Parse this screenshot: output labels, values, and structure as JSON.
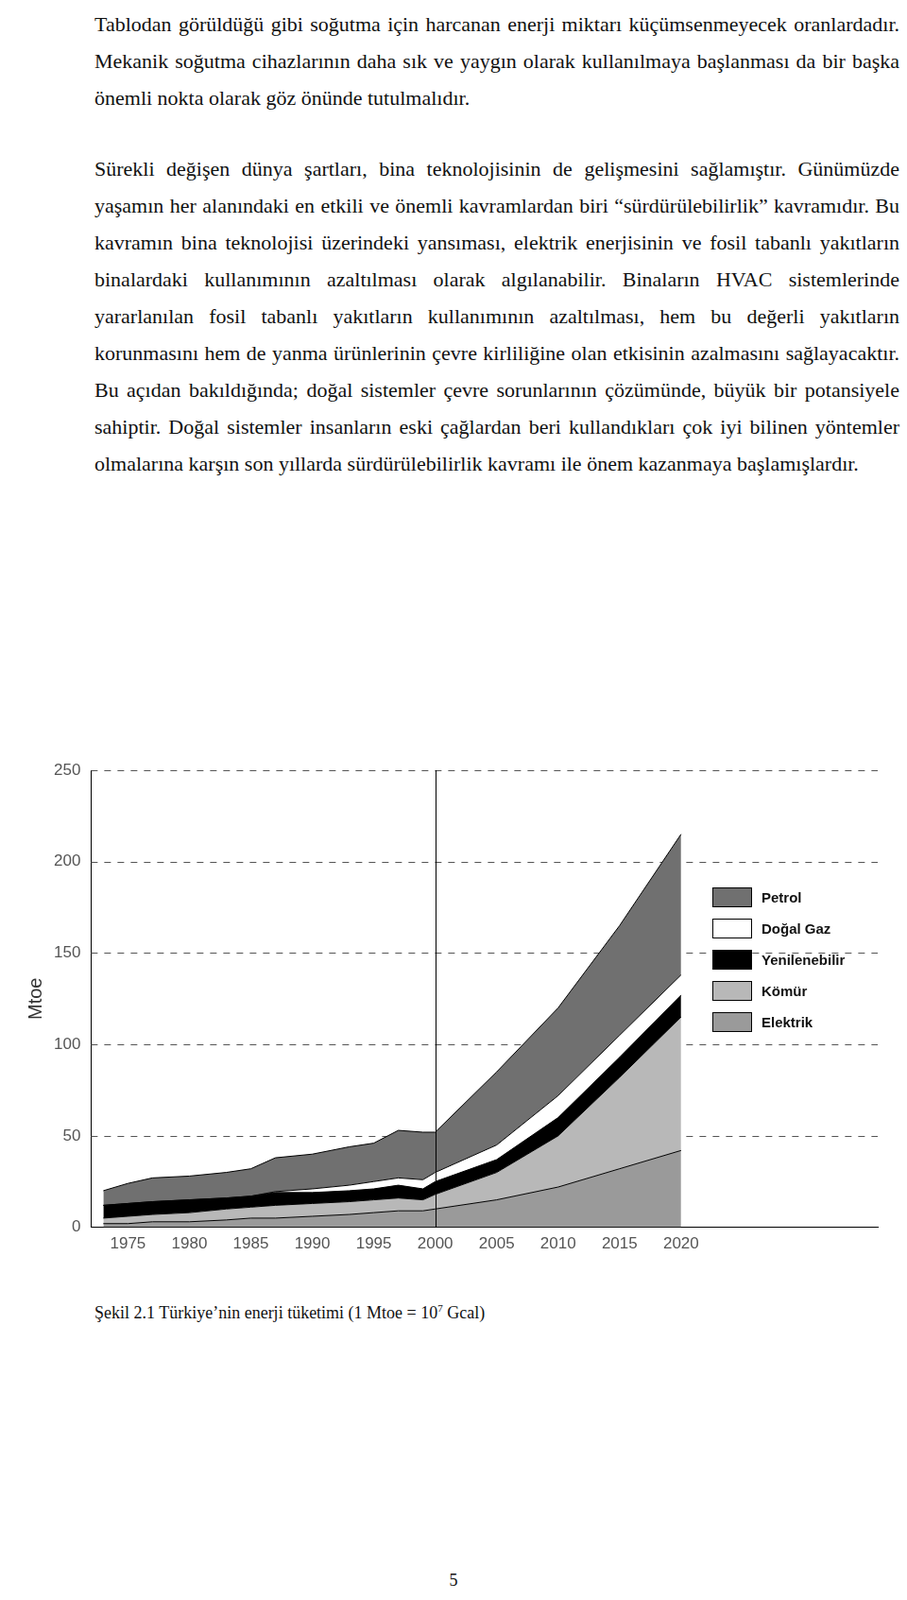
{
  "paragraphs": [
    "Tablodan görüldüğü gibi soğutma için harcanan enerji miktarı küçümsenmeyecek oranlardadır. Mekanik soğutma cihazlarının daha sık ve yaygın olarak kullanılmaya başlanması da bir başka önemli nokta olarak göz önünde tutulmalıdır.",
    "Sürekli değişen dünya şartları, bina teknolojisinin de gelişmesini sağlamıştır. Günümüzde yaşamın her alanındaki en etkili ve önemli kavramlardan biri “sürdürülebilirlik” kavramıdır. Bu kavramın bina teknolojisi üzerindeki yansıması, elektrik enerjisinin ve fosil tabanlı yakıtların binalardaki kullanımının azaltılması olarak algılanabilir. Binaların HVAC sistemlerinde yararlanılan fosil tabanlı yakıtların kullanımının azaltılması, hem bu değerli yakıtların korunmasını hem de yanma ürünlerinin çevre kirliliğine olan etkisinin azalmasını sağlayacaktır. Bu açıdan bakıldığında; doğal sistemler çevre sorunlarının çözümünde, büyük bir potansiyele sahiptir. Doğal sistemler insanların eski çağlardan beri kullandıkları çok iyi bilinen yöntemler olmalarına karşın son yıllarda sürdürülebilirlik kavramı ile önem kazanmaya başlamışlardır."
  ],
  "chart_data": {
    "type": "area",
    "stacked": true,
    "ylabel": "Mtoe",
    "x": [
      1973,
      1975,
      1977,
      1980,
      1983,
      1985,
      1987,
      1990,
      1993,
      1995,
      1997,
      1999,
      2000,
      2005,
      2010,
      2015,
      2020
    ],
    "series": [
      {
        "name": "Elektrik",
        "color": "#9a9a9a",
        "values": [
          2,
          2,
          3,
          3,
          4,
          5,
          5,
          6,
          7,
          8,
          9,
          9,
          10,
          15,
          22,
          32,
          42
        ]
      },
      {
        "name": "Kömür",
        "color": "#b8b8b8",
        "values": [
          3,
          4,
          4,
          5,
          6,
          6,
          7,
          7,
          7,
          7,
          7,
          6,
          8,
          15,
          28,
          50,
          73
        ]
      },
      {
        "name": "Yenilenebilir",
        "color": "#000000",
        "values": [
          7,
          7,
          7,
          7,
          6,
          6,
          7,
          6,
          6,
          6,
          7,
          6,
          7,
          7,
          10,
          11,
          12
        ]
      },
      {
        "name": "Doğal Gaz",
        "color": "#ffffff",
        "values": [
          0,
          0,
          0,
          0,
          0,
          0,
          0.5,
          2,
          3,
          4,
          4,
          5,
          5,
          8,
          12,
          12,
          11
        ]
      },
      {
        "name": "Petrol",
        "color": "#707070",
        "values": [
          8,
          11,
          13,
          13,
          14,
          15,
          18.5,
          19,
          21,
          21,
          26,
          26,
          22,
          40,
          48,
          60,
          77
        ]
      }
    ],
    "xlim": [
      1972,
      2036
    ],
    "xticks": [
      1975,
      1980,
      1985,
      1990,
      1995,
      2000,
      2005,
      2010,
      2015,
      2020
    ],
    "ylim": [
      0,
      250
    ],
    "yticks": [
      0,
      50,
      100,
      150,
      200,
      250
    ],
    "grid": true,
    "legend": "right",
    "divider_x": 2000
  },
  "caption": {
    "before": "Şekil 2.1 Türkiye’nin enerji tüketimi (1 Mtoe = 10",
    "superscript": "7",
    "after": " Gcal)"
  },
  "page_number": "5"
}
